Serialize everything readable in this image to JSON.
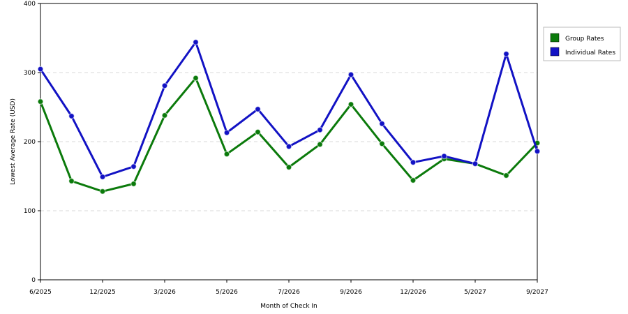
{
  "chart_data": {
    "type": "line",
    "title": "",
    "xlabel": "Month of Check In",
    "ylabel": "Lowest Average Rate (USD)",
    "ylim": [
      0,
      400
    ],
    "yticks": [
      "0",
      "100",
      "200",
      "300",
      "400"
    ],
    "grid": true,
    "legend_position": "top-right",
    "x_tick_labels": [
      {
        "index": 0,
        "label": "6/2025"
      },
      {
        "index": 2,
        "label": "12/2025"
      },
      {
        "index": 4,
        "label": "3/2026"
      },
      {
        "index": 6,
        "label": "5/2026"
      },
      {
        "index": 8,
        "label": "7/2026"
      },
      {
        "index": 10,
        "label": "9/2026"
      },
      {
        "index": 12,
        "label": "12/2026"
      },
      {
        "index": 14,
        "label": "5/2027"
      },
      {
        "index": 16,
        "label": "9/2027"
      }
    ],
    "point_count": 17,
    "series": [
      {
        "name": "Group Rates",
        "color": "#0b7a0b",
        "values": [
          258,
          143,
          128,
          139,
          238,
          292,
          182,
          214,
          163,
          196,
          254,
          197,
          144,
          175,
          168,
          151,
          198
        ]
      },
      {
        "name": "Individual Rates",
        "color": "#1212c4",
        "values": [
          305,
          237,
          149,
          164,
          281,
          344,
          213,
          247,
          193,
          217,
          297,
          226,
          170,
          179,
          168,
          327,
          186
        ]
      }
    ]
  }
}
